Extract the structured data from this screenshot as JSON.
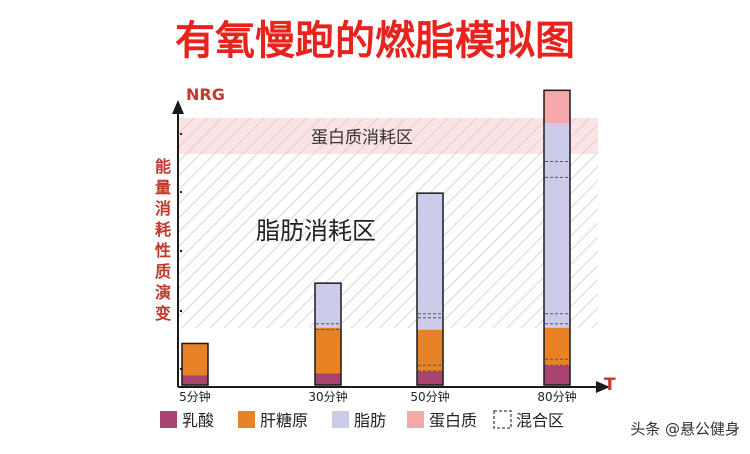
{
  "chart_data": {
    "type": "bar",
    "title": "有氧慢跑的燃脂模拟图",
    "ylabel": "NRG",
    "xlabel": "T",
    "ylabel_vertical": "能量消耗性质演变",
    "zones": {
      "fat": "脂肪消耗区",
      "protein": "蛋白质消耗区"
    },
    "categories": [
      "5分钟",
      "30分钟",
      "50分钟",
      "80分钟"
    ],
    "ylim": [
      0,
      270
    ],
    "series": [
      {
        "name": "乳酸",
        "values": [
          10,
          12,
          14,
          20
        ]
      },
      {
        "name": "肝糖原",
        "values": [
          32,
          46,
          42,
          38
        ]
      },
      {
        "name": "脂肪",
        "values": [
          0,
          45,
          138,
          207
        ]
      },
      {
        "name": "蛋白质",
        "values": [
          0,
          0,
          0,
          33
        ]
      }
    ],
    "mix_lines": [
      [],
      [
        56,
        62
      ],
      [
        14,
        20,
        68,
        72
      ],
      [
        20,
        26,
        62,
        72,
        210,
        226
      ]
    ],
    "legend": [
      "乳酸",
      "肝糖原",
      "脂肪",
      "蛋白质",
      "混合区"
    ],
    "colors": {
      "乳酸": "#a9446f",
      "肝糖原": "#e98224",
      "脂肪": "#ccccea",
      "蛋白质": "#f5a8aa",
      "title": "#e8231e",
      "axis": "#1a1a1a",
      "label": "#c0392b",
      "bar_border": "#1a1a1a",
      "hatch": "#d8d8d8",
      "protein_zone": "#fbe4e5"
    }
  },
  "watermark": "头条 @悬公健身"
}
